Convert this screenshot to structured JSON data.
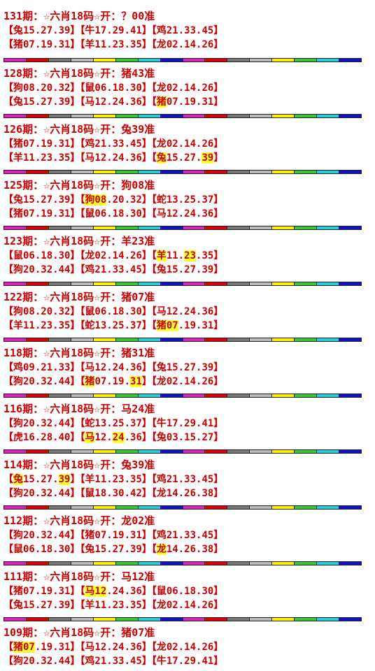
{
  "bar_colors": [
    "#e020c0",
    "#dd0000",
    "#777777",
    "#bbbbbb",
    "#ffee00",
    "#33cc33",
    "#22ccdd",
    "#1111cc",
    "#e020c0",
    "#dd0000",
    "#777777",
    "#bbbbbb",
    "#ffee00",
    "#33cc33",
    "#22ccdd",
    "#1111cc"
  ],
  "highlight_color": "#ffff33",
  "text_color": "#cc0000",
  "blocks": [
    {
      "title": "131期：☆六肖18码☆开：？00准",
      "rows": [
        [
          {
            "t": "【兔15.27.39】"
          },
          {
            "t": "【牛17.29.41】"
          },
          {
            "t": "【鸡21.33.45】"
          }
        ],
        [
          {
            "t": "【猪07.19.31】"
          },
          {
            "t": "【羊11.23.35】"
          },
          {
            "t": "【龙02.14.26】"
          }
        ]
      ]
    },
    {
      "title": "128期：☆六肖18码☆开：猪43准",
      "rows": [
        [
          {
            "t": "【狗08.20.32】"
          },
          {
            "t": "【鼠06.18.30】"
          },
          {
            "t": "【龙02.14.26】"
          }
        ],
        [
          {
            "t": "【兔15.27.39】"
          },
          {
            "t": "【马12.24.36】"
          },
          {
            "t": "【"
          },
          {
            "t": "猪",
            "h": 1
          },
          {
            "t": "07.19.31】"
          }
        ]
      ]
    },
    {
      "title": "126期：☆六肖18码☆开：兔39准",
      "rows": [
        [
          {
            "t": "【猪07.19.31】"
          },
          {
            "t": "【鸡21.33.45】"
          },
          {
            "t": "【龙02.14.26】"
          }
        ],
        [
          {
            "t": "【羊11.23.35】"
          },
          {
            "t": "【马12.24.36】"
          },
          {
            "t": "【"
          },
          {
            "t": "兔",
            "h": 1
          },
          {
            "t": "15.27."
          },
          {
            "t": "39",
            "h": 1
          },
          {
            "t": "】"
          }
        ]
      ]
    },
    {
      "title": "125期：☆六肖18码☆开：狗08准",
      "rows": [
        [
          {
            "t": "【兔15.27.39】"
          },
          {
            "t": "【"
          },
          {
            "t": "狗08",
            "h": 1
          },
          {
            "t": ".20.32】"
          },
          {
            "t": "【蛇13.25.37】"
          }
        ],
        [
          {
            "t": "【猪07.19.31】"
          },
          {
            "t": "【鼠06.18.30】"
          },
          {
            "t": "【马12.24.36】"
          }
        ]
      ]
    },
    {
      "title": "123期：☆六肖18码☆开：羊23准",
      "rows": [
        [
          {
            "t": "【鼠06.18.30】"
          },
          {
            "t": "【龙02.14.26】"
          },
          {
            "t": "【"
          },
          {
            "t": "羊",
            "h": 1
          },
          {
            "t": "11."
          },
          {
            "t": "23",
            "h": 1
          },
          {
            "t": ".35】"
          }
        ],
        [
          {
            "t": "【狗20.32.44】"
          },
          {
            "t": "【鸡21.33.45】"
          },
          {
            "t": "【兔15.27.39】"
          }
        ]
      ]
    },
    {
      "title": "122期：☆六肖18码☆开：猪07准",
      "rows": [
        [
          {
            "t": "【狗08.20.32】"
          },
          {
            "t": "【鼠06.18.30】"
          },
          {
            "t": "【马12.24.36】"
          }
        ],
        [
          {
            "t": "【羊11.23.35】"
          },
          {
            "t": "【蛇13.25.37】"
          },
          {
            "t": "【"
          },
          {
            "t": "猪07",
            "h": 1
          },
          {
            "t": ".19.31】"
          }
        ]
      ]
    },
    {
      "title": "118期：☆六肖18码☆开：猪31准",
      "rows": [
        [
          {
            "t": "【鸡09.21.33】"
          },
          {
            "t": "【马12.24.36】"
          },
          {
            "t": "【兔15.27.39】"
          }
        ],
        [
          {
            "t": "【狗20.32.44】"
          },
          {
            "t": "【"
          },
          {
            "t": "猪",
            "h": 1
          },
          {
            "t": "07.19."
          },
          {
            "t": "31",
            "h": 1
          },
          {
            "t": "】"
          },
          {
            "t": "【龙02.14.26】"
          }
        ]
      ]
    },
    {
      "title": "116期：☆六肖18码☆开：马24准",
      "rows": [
        [
          {
            "t": "【狗20.32.44】"
          },
          {
            "t": "【蛇13.25.37】"
          },
          {
            "t": "【牛17.29.41】"
          }
        ],
        [
          {
            "t": "【虎16.28.40】"
          },
          {
            "t": "【"
          },
          {
            "t": "马",
            "h": 1
          },
          {
            "t": "12."
          },
          {
            "t": "24",
            "h": 1
          },
          {
            "t": ".36】"
          },
          {
            "t": "【兔03.15.27】"
          }
        ]
      ]
    },
    {
      "title": "114期：☆六肖18码☆开：兔39准",
      "rows": [
        [
          {
            "t": "【"
          },
          {
            "t": "兔",
            "h": 1
          },
          {
            "t": "15.27."
          },
          {
            "t": "39",
            "h": 1
          },
          {
            "t": "】"
          },
          {
            "t": "【羊11.23.35】"
          },
          {
            "t": "【鸡21.33.45】"
          }
        ],
        [
          {
            "t": "【狗20.32.44】"
          },
          {
            "t": "【鼠18.30.42】"
          },
          {
            "t": "【龙14.26.38】"
          }
        ]
      ]
    },
    {
      "title": "112期：☆六肖18码☆开：龙02准",
      "rows": [
        [
          {
            "t": "【狗20.32.44】"
          },
          {
            "t": "【猪07.19.31】"
          },
          {
            "t": "【鸡21.33.45】"
          }
        ],
        [
          {
            "t": "【鼠06.18.30】"
          },
          {
            "t": "【兔15.27.39】"
          },
          {
            "t": "【"
          },
          {
            "t": "龙",
            "h": 1
          },
          {
            "t": "14.26.38】"
          }
        ]
      ]
    },
    {
      "title": "111期：☆六肖18码☆开：马12准",
      "rows": [
        [
          {
            "t": "【猪07.19.31】"
          },
          {
            "t": "【"
          },
          {
            "t": "马12",
            "h": 1
          },
          {
            "t": ".24.36】"
          },
          {
            "t": "【鼠06.18.30】"
          }
        ],
        [
          {
            "t": "【兔15.27.39】"
          },
          {
            "t": "【羊11.23.35】"
          },
          {
            "t": "【龙02.14.26】"
          }
        ]
      ]
    },
    {
      "title": "109期：☆六肖18码☆开：猪07准",
      "rows": [
        [
          {
            "t": "【"
          },
          {
            "t": "猪07",
            "h": 1
          },
          {
            "t": ".19.31】"
          },
          {
            "t": "【马12.24.36】"
          },
          {
            "t": "【龙02.14.26】"
          }
        ],
        [
          {
            "t": "【狗20.32.44】"
          },
          {
            "t": "【鸡21.33.45】"
          },
          {
            "t": "【牛17.29.41】"
          }
        ]
      ]
    }
  ]
}
